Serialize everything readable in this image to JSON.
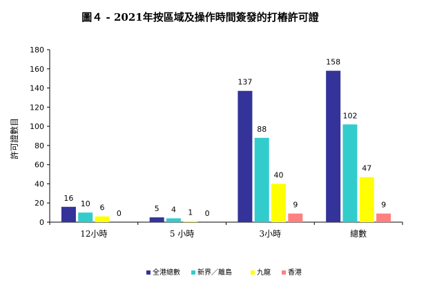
{
  "chart_data": {
    "type": "bar",
    "title": "圖４ - 2021年按區域及操作時間簽發的打樁許可證",
    "xlabel": "",
    "ylabel": "許可證數目",
    "ylim": [
      0,
      180
    ],
    "yticks": [
      0,
      20,
      40,
      60,
      80,
      100,
      120,
      140,
      160,
      180
    ],
    "categories": [
      "12小時",
      "5 小時",
      "3小時",
      "總數"
    ],
    "series": [
      {
        "name": "全港總數",
        "color": "#333399",
        "values": [
          16,
          5,
          137,
          158
        ]
      },
      {
        "name": "新界／離島",
        "color": "#33cccc",
        "values": [
          10,
          4,
          88,
          102
        ]
      },
      {
        "name": "九龍",
        "color": "#ffff00",
        "values": [
          6,
          1,
          40,
          47
        ]
      },
      {
        "name": "香港",
        "color": "#ff8080",
        "values": [
          0,
          0,
          9,
          9
        ]
      }
    ],
    "legend_position": "bottom",
    "grid": false
  }
}
